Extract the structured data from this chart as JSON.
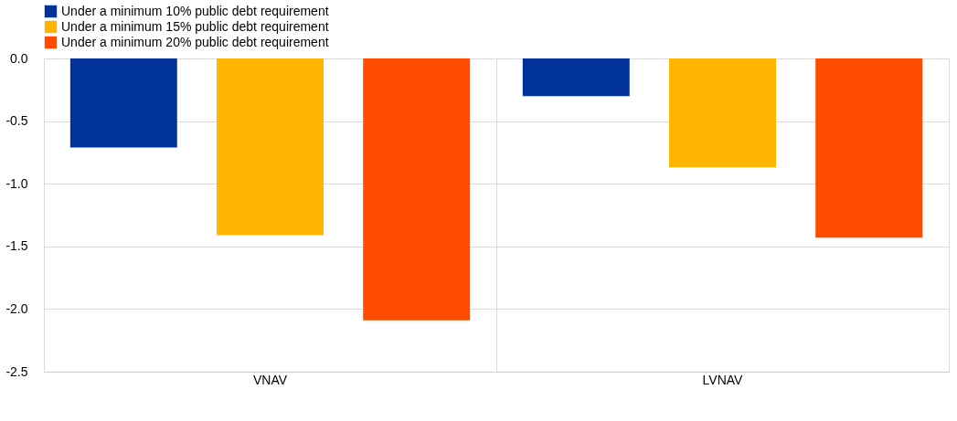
{
  "chart_data": {
    "type": "bar",
    "categories": [
      "VNAV",
      "LVNAV"
    ],
    "series": [
      {
        "name": "Under a minimum 10% public debt requirement",
        "color": "#003299",
        "values": [
          -0.71,
          -0.3
        ]
      },
      {
        "name": "Under a minimum 15% public debt requirement",
        "color": "#ffb400",
        "values": [
          -1.41,
          -0.87
        ]
      },
      {
        "name": "Under a minimum 20% public debt requirement",
        "color": "#ff4b00",
        "values": [
          -2.09,
          -1.43
        ]
      }
    ],
    "ylim": [
      -2.5,
      0
    ],
    "yticks": [
      -2.5,
      {
        "value": -2,
        "label": "-2.0"
      },
      -1.5,
      {
        "value": -1,
        "label": "-1.0"
      },
      -0.5,
      {
        "value": 0,
        "label": "0.0"
      }
    ],
    "grid": true,
    "legend": "top left"
  }
}
